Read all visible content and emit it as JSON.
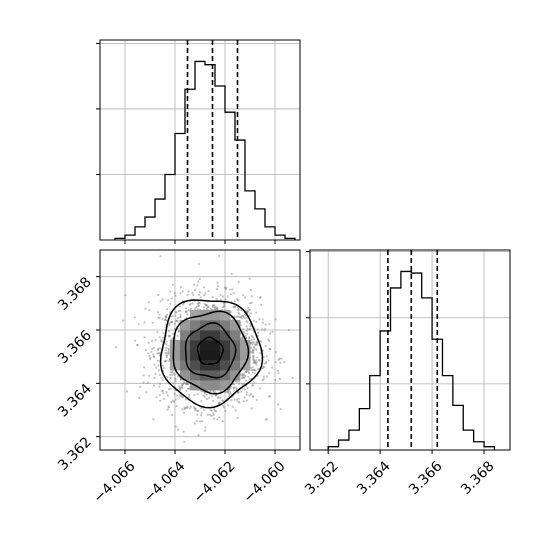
{
  "chart_data": [
    {
      "type": "histogram",
      "panel": "top-left",
      "parameter_index": 0,
      "xlim": [
        -4.067,
        -4.059
      ],
      "bin_edges": [
        -4.0664,
        -4.066,
        -4.0656,
        -4.0652,
        -4.0648,
        -4.0644,
        -4.064,
        -4.0636,
        -4.0632,
        -4.0628,
        -4.0624,
        -4.062,
        -4.0616,
        -4.0612,
        -4.0608,
        -4.0604,
        -4.06,
        -4.0596,
        -4.0592
      ],
      "counts": [
        1,
        3,
        8,
        14,
        25,
        40,
        65,
        92,
        109,
        107,
        94,
        78,
        61,
        30,
        19,
        8,
        3,
        1
      ],
      "quantile_lines": [
        -4.0635,
        -4.0625,
        -4.0615
      ],
      "grid": true,
      "tick_labels_shown": false
    },
    {
      "type": "contour-scatter",
      "panel": "bottom-left",
      "x_parameter_index": 0,
      "y_parameter_index": 1,
      "xlim": [
        -4.067,
        -4.059
      ],
      "ylim": [
        3.3615,
        3.369
      ],
      "center": [
        -4.0626,
        3.3652
      ],
      "std": [
        0.001,
        0.001
      ],
      "contour_levels_sigma": [
        0.5,
        1.0,
        1.5,
        2.0
      ],
      "x_ticks": [
        -4.066,
        -4.064,
        -4.062,
        -4.06
      ],
      "x_tick_labels": [
        "−4.066",
        "−4.064",
        "−4.062",
        "−4.060"
      ],
      "y_ticks": [
        3.362,
        3.364,
        3.366,
        3.368
      ],
      "y_tick_labels": [
        "3.362",
        "3.364",
        "3.366",
        "3.368"
      ],
      "grid": true
    },
    {
      "type": "histogram",
      "panel": "bottom-right",
      "parameter_index": 1,
      "xlim": [
        3.3613,
        3.369
      ],
      "bin_edges": [
        3.362,
        3.3624,
        3.3628,
        3.3632,
        3.3636,
        3.364,
        3.3644,
        3.3648,
        3.3652,
        3.3656,
        3.366,
        3.3664,
        3.3668,
        3.3672,
        3.3676,
        3.368,
        3.3684
      ],
      "counts": [
        2,
        6,
        12,
        25,
        45,
        72,
        98,
        108,
        107,
        92,
        67,
        45,
        27,
        12,
        5,
        2
      ],
      "quantile_lines": [
        3.3643,
        3.3652,
        3.3662
      ],
      "x_ticks": [
        3.362,
        3.364,
        3.366,
        3.368
      ],
      "x_tick_labels": [
        "3.362",
        "3.364",
        "3.366",
        "3.368"
      ],
      "grid": true
    }
  ]
}
